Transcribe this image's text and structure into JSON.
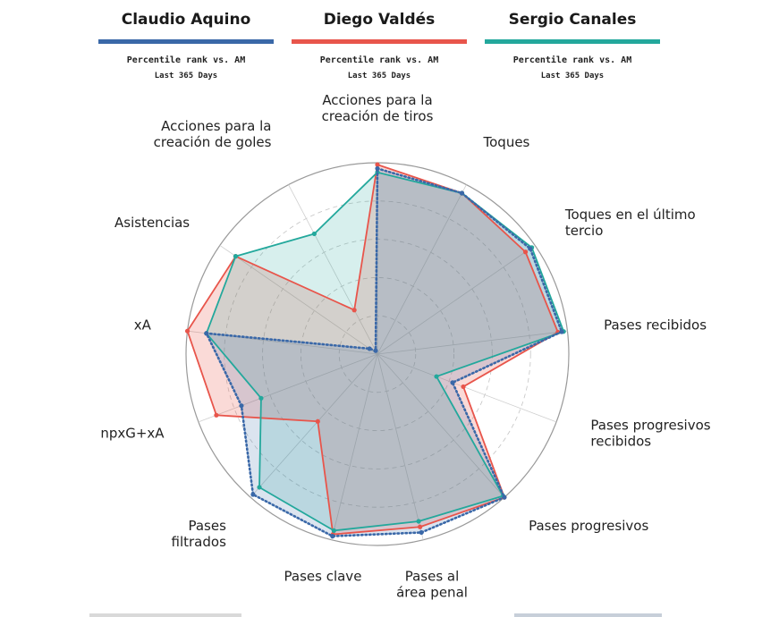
{
  "players": [
    {
      "name": "Claudio Aquino",
      "color": "#3a68a8",
      "sub1": "Percentile rank vs. AM",
      "sub2": "Last 365 Days"
    },
    {
      "name": "Diego Valdés",
      "color": "#e8554b",
      "sub1": "Percentile rank vs. AM",
      "sub2": "Last 365 Days"
    },
    {
      "name": "Sergio Canales",
      "color": "#23a89c",
      "sub1": "Percentile rank vs. AM",
      "sub2": "Last 365 Days"
    }
  ],
  "chart_data": {
    "type": "radar",
    "scale": [
      0,
      100
    ],
    "grid": true,
    "categories": [
      [
        "Acciones para la",
        "creación de tiros"
      ],
      [
        "Toques"
      ],
      [
        "Toques en el último",
        "tercio"
      ],
      [
        "Pases recibidos"
      ],
      [
        "Pases progresivos",
        "recibidos"
      ],
      [
        "Pases progresivos"
      ],
      [
        "Pases al",
        "área penal"
      ],
      [
        "Pases clave"
      ],
      [
        "Pases",
        "filtrados"
      ],
      [
        "npxG+xA"
      ],
      [
        "xA"
      ],
      [
        "Asistencias"
      ],
      [
        "Acciones para la",
        "creación de goles"
      ]
    ],
    "series": [
      {
        "name": "Claudio Aquino",
        "color": "#3a68a8",
        "values": [
          97,
          95,
          97,
          97,
          42,
          100,
          96,
          98,
          98,
          76,
          90,
          5,
          2
        ]
      },
      {
        "name": "Diego Valdés",
        "color": "#e8554b",
        "values": [
          99,
          95,
          94,
          95,
          48,
          100,
          93,
          97,
          47,
          90,
          100,
          90,
          26
        ]
      },
      {
        "name": "Sergio Canales",
        "color": "#23a89c",
        "values": [
          95,
          95,
          98,
          98,
          33,
          99,
          90,
          95,
          93,
          65,
          90,
          90,
          71
        ]
      }
    ]
  }
}
